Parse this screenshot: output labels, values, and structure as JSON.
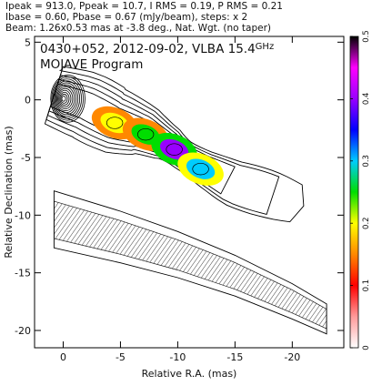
{
  "header": {
    "line1": "Ipeak = 913.0, Ppeak = 10.7, I RMS = 0.19, P RMS = 0.21",
    "line2": "Ibase = 0.60, Pbase = 0.67 (mJy/beam), steps: x 2",
    "line3": "Beam: 1.26x0.53 mas at -3.8 deg., Nat. Wgt. (no taper)"
  },
  "plot": {
    "title": "0430+052, 2012-09-02, VLBA 15.4 GHz",
    "title_source": "0430+052, 2012-09-02, VLBA 15.4",
    "title_unit": "GHz",
    "subtitle": "MOJAVE Program"
  },
  "chart_data": {
    "type": "contour map",
    "title": "0430+052, 2012-09-02, VLBA 15.4 GHz",
    "subtitle": "MOJAVE Program",
    "xlabel": "Relative R.A. (mas)",
    "ylabel": "Relative Declination (mas)",
    "xlim": [
      2.5,
      -24.5
    ],
    "ylim": [
      -21.5,
      5.5
    ],
    "xticks": [
      0,
      -5,
      -10,
      -15,
      -20
    ],
    "yticks": [
      5,
      0,
      -5,
      -10,
      -15,
      -20
    ],
    "colorbar": {
      "range": [
        0,
        0.5
      ],
      "ticks": [
        0,
        0.1,
        0.2,
        0.3,
        0.4,
        0.5
      ],
      "colors": [
        "#ffffff",
        "#ff9a9a",
        "#ff0000",
        "#ff8800",
        "#ffff00",
        "#00dd00",
        "#00ccff",
        "#0000ff",
        "#9900ff",
        "#ff00ff",
        "#000000"
      ]
    },
    "upper_panel": {
      "core": [
        0,
        0
      ],
      "jet_ridge": [
        [
          0.8,
          0.4
        ],
        [
          -2.0,
          -0.5
        ],
        [
          -4.5,
          -1.8
        ],
        [
          -7.0,
          -2.6
        ],
        [
          -9.2,
          -3.8
        ],
        [
          -10.5,
          -4.8
        ],
        [
          -12.5,
          -6.0
        ],
        [
          -15.0,
          -7.3
        ],
        [
          -18.0,
          -8.2
        ],
        [
          -21.0,
          -9.2
        ]
      ],
      "polarization_patches": [
        {
          "x": -4.5,
          "y": -2.0,
          "level": 0.22
        },
        {
          "x": -7.2,
          "y": -3.0,
          "level": 0.25
        },
        {
          "x": -9.7,
          "y": -4.3,
          "level": 0.42
        },
        {
          "x": -12.0,
          "y": -6.0,
          "level": 0.3
        }
      ]
    },
    "lower_panel": {
      "description": "polarized intensity contours with EVPA hatching",
      "ridge": [
        [
          0.8,
          -10.5
        ],
        [
          -5.0,
          -12.0
        ],
        [
          -10.0,
          -13.5
        ],
        [
          -15.0,
          -15.3
        ],
        [
          -20.0,
          -17.5
        ],
        [
          -23.0,
          -19.0
        ]
      ]
    }
  }
}
